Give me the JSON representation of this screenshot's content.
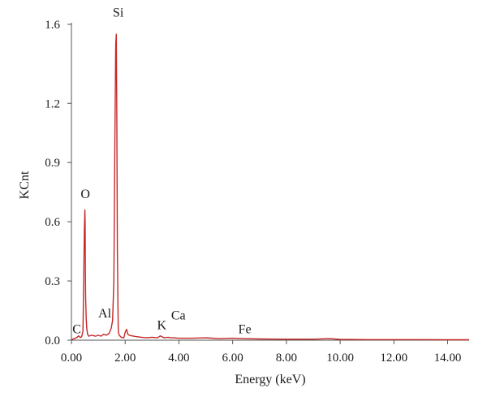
{
  "chart_data": {
    "type": "line",
    "title": "",
    "xlabel": "Energy (keV)",
    "ylabel": "KCnt",
    "xlim": [
      0,
      14.8
    ],
    "ylim": [
      0,
      1.6
    ],
    "x_ticks": [
      0,
      2,
      4,
      6,
      8,
      10,
      12,
      14
    ],
    "x_tick_labels": [
      "0.00",
      "2.00",
      "4.00",
      "6.00",
      "8.00",
      "10.00",
      "12.00",
      "14.00"
    ],
    "y_ticks": [
      0,
      0.3,
      0.6,
      0.9,
      1.2,
      1.6
    ],
    "y_tick_labels": [
      "0.0",
      "0.3",
      "0.6",
      "0.9",
      "1.2",
      "1.6"
    ],
    "grid": false,
    "series": [
      {
        "color": "#c62828",
        "x": [
          0.0,
          0.1,
          0.2,
          0.27,
          0.33,
          0.38,
          0.43,
          0.46,
          0.48,
          0.5,
          0.51,
          0.52,
          0.53,
          0.55,
          0.57,
          0.6,
          0.65,
          0.75,
          0.9,
          1.0,
          1.1,
          1.2,
          1.3,
          1.4,
          1.48,
          1.53,
          1.58,
          1.62,
          1.65,
          1.67,
          1.69,
          1.71,
          1.72,
          1.73,
          1.74,
          1.75,
          1.78,
          1.85,
          1.95,
          2.0,
          2.05,
          2.1,
          2.15,
          2.25,
          2.4,
          2.6,
          2.8,
          3.0,
          3.2,
          3.31,
          3.45,
          3.6,
          3.69,
          3.8,
          4.0,
          4.5,
          5.0,
          5.5,
          6.0,
          6.4,
          7.0,
          8.0,
          9.0,
          9.6,
          10.0,
          11.0,
          12.0,
          13.0,
          14.0,
          14.8
        ],
        "y": [
          0.003,
          0.008,
          0.013,
          0.022,
          0.013,
          0.018,
          0.045,
          0.32,
          0.55,
          0.66,
          0.6,
          0.35,
          0.22,
          0.11,
          0.06,
          0.03,
          0.02,
          0.025,
          0.02,
          0.025,
          0.02,
          0.03,
          0.025,
          0.035,
          0.06,
          0.1,
          0.3,
          1.05,
          1.5,
          1.55,
          1.07,
          0.45,
          0.36,
          0.18,
          0.08,
          0.04,
          0.025,
          0.015,
          0.012,
          0.04,
          0.055,
          0.03,
          0.025,
          0.022,
          0.018,
          0.015,
          0.012,
          0.015,
          0.012,
          0.022,
          0.012,
          0.015,
          0.012,
          0.012,
          0.01,
          0.01,
          0.012,
          0.008,
          0.01,
          0.008,
          0.006,
          0.005,
          0.005,
          0.008,
          0.004,
          0.003,
          0.003,
          0.003,
          0.002,
          0.002
        ]
      }
    ],
    "annotations": [
      {
        "text": "C",
        "x": 0.2,
        "y": 0.035
      },
      {
        "text": "O",
        "x": 0.52,
        "y": 0.72
      },
      {
        "text": "Al",
        "x": 1.24,
        "y": 0.115
      },
      {
        "text": "Si",
        "x": 1.74,
        "y": 1.64
      },
      {
        "text": "K",
        "x": 3.36,
        "y": 0.055
      },
      {
        "text": "Ca",
        "x": 3.98,
        "y": 0.105
      },
      {
        "text": "Fe",
        "x": 6.45,
        "y": 0.035
      }
    ]
  }
}
